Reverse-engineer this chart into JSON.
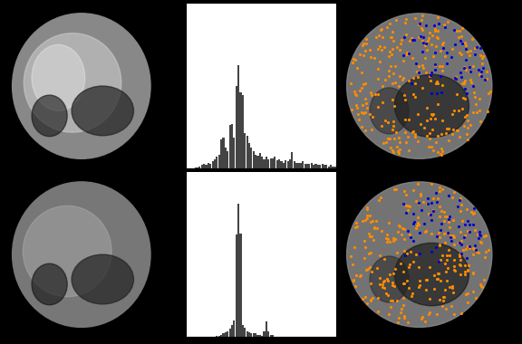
{
  "background_color": "#000000",
  "hist_bg_color": "#ffffff",
  "bar_color": "#444444",
  "upper_hist_ylim": [
    0,
    140
  ],
  "lower_hist_ylim": [
    0,
    140
  ],
  "xlim": [
    -5.5,
    5.5
  ],
  "xticks": [
    -5,
    0,
    5
  ],
  "yticks_upper": [
    0,
    20,
    40,
    60,
    80,
    100,
    120,
    140
  ],
  "yticks_lower": [
    0,
    20,
    40,
    60,
    80,
    100,
    120,
    140
  ],
  "upper_hist_values": [
    0,
    0,
    0,
    0,
    1,
    1,
    2,
    3,
    4,
    3,
    5,
    4,
    6,
    8,
    10,
    12,
    25,
    26,
    18,
    15,
    37,
    38,
    26,
    70,
    88,
    65,
    62,
    30,
    28,
    22,
    18,
    15,
    12,
    11,
    13,
    10,
    8,
    10,
    8,
    9,
    9,
    10,
    7,
    8,
    6,
    5,
    7,
    6,
    8,
    14,
    6,
    5,
    5,
    5,
    6,
    4,
    4,
    4,
    5,
    3,
    4,
    3,
    3,
    4,
    3,
    3,
    2,
    3,
    2,
    2
  ],
  "lower_hist_values": [
    0,
    0,
    0,
    0,
    0,
    0,
    0,
    0,
    0,
    0,
    0,
    0,
    0,
    0,
    1,
    1,
    2,
    3,
    4,
    5,
    7,
    10,
    14,
    87,
    113,
    88,
    10,
    8,
    5,
    4,
    3,
    3,
    3,
    2,
    2,
    1,
    5,
    13,
    5,
    2,
    2,
    0,
    0,
    0,
    0,
    0,
    0,
    0,
    0,
    0,
    0,
    0,
    0,
    0,
    0,
    0,
    0,
    0,
    0,
    0,
    0,
    0,
    0,
    0,
    0,
    0,
    0,
    0,
    0,
    0
  ],
  "num_bins": 70,
  "orange_color": "#FF8C00",
  "blue_color": "#0000CD"
}
